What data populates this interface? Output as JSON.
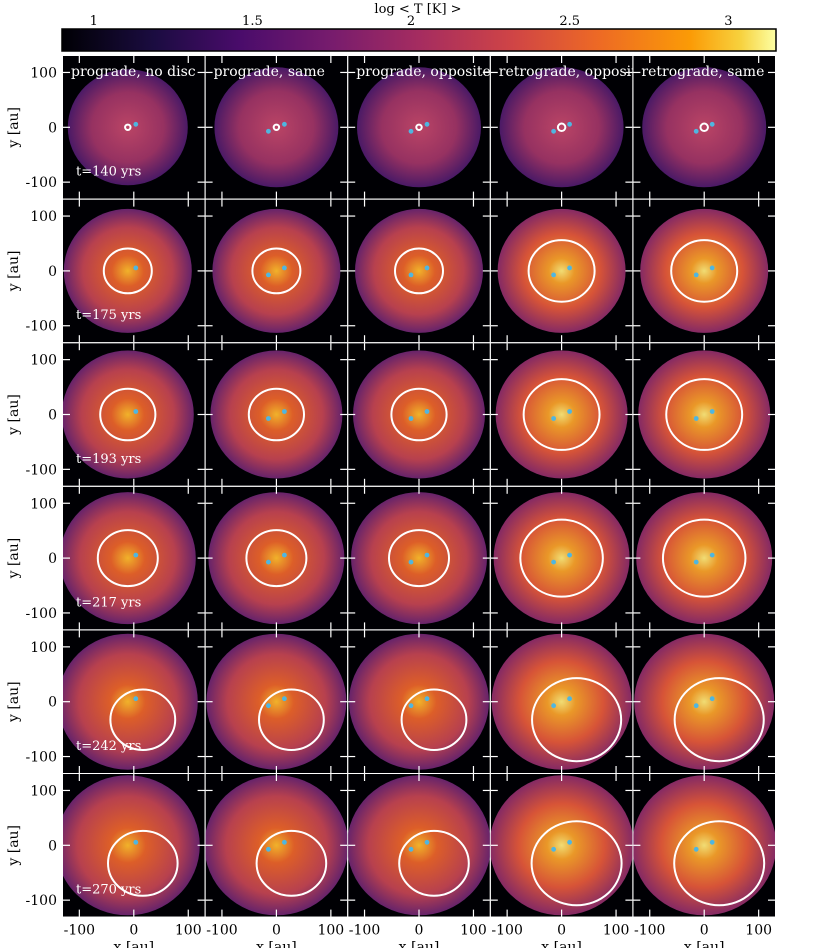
{
  "chart_data": {
    "type": "heatmap",
    "colorbar": {
      "label": "log < T [K] >",
      "ticks": [
        "1",
        "1.5",
        "2",
        "2.5",
        "3"
      ],
      "tick_values": [
        1,
        1.5,
        2,
        2.5,
        3
      ],
      "range": [
        0.9,
        3.15
      ],
      "colormap": "inferno"
    },
    "columns": [
      "prograde, no disc",
      "prograde, same",
      "prograde, opposite",
      "retrograde, opposite",
      "retrograde, same"
    ],
    "rows": [
      "t=140 yrs",
      "t=175 yrs",
      "t=193 yrs",
      "t=217 yrs",
      "t=242 yrs",
      "t=270 yrs"
    ],
    "xlabel": "x [au]",
    "ylabel": "y [au]",
    "xlim": [
      -130,
      130
    ],
    "ylim": [
      -130,
      130
    ],
    "xticks": [
      "-100",
      "0",
      "100"
    ],
    "yticks": [
      "100",
      "0",
      "-100"
    ],
    "xtick_values": [
      -100,
      0,
      100
    ],
    "ytick_values": [
      100,
      0,
      -100
    ],
    "grid": false,
    "marker_color": "#4fb6e0",
    "contour_color": "#ffffff"
  }
}
